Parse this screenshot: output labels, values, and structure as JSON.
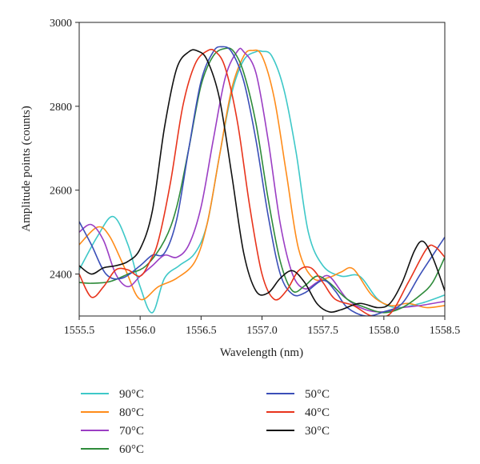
{
  "chart_data": {
    "type": "line",
    "xlabel": "Wavelength (nm)",
    "ylabel": "Amplitude points (counts)",
    "xlim": [
      1555.5,
      1558.5
    ],
    "ylim": [
      2300,
      3000
    ],
    "xticks": [
      1555.5,
      1556.0,
      1556.5,
      1557.0,
      1557.5,
      1558.0,
      1558.5
    ],
    "xtick_labels": [
      "1555.5",
      "1556.0",
      "1556.5",
      "1557.0",
      "1557.5",
      "1558.0",
      "1558.5"
    ],
    "yticks": [
      2400,
      2600,
      2800,
      3000
    ],
    "ytick_labels": [
      "2400",
      "2600",
      "2800",
      "3000"
    ],
    "grid": false,
    "legend_position": "bottom",
    "series": [
      {
        "name": "90°C",
        "color": "#3ec8c8",
        "x": [
          1555.5,
          1555.65,
          1555.78,
          1555.9,
          1556.0,
          1556.1,
          1556.2,
          1556.32,
          1556.45,
          1556.55,
          1556.65,
          1556.75,
          1556.85,
          1556.95,
          1557.0,
          1557.08,
          1557.18,
          1557.28,
          1557.38,
          1557.5,
          1557.65,
          1557.8,
          1557.95,
          1558.1,
          1558.3,
          1558.5
        ],
        "y": [
          2410,
          2490,
          2537,
          2470,
          2370,
          2308,
          2390,
          2420,
          2450,
          2520,
          2680,
          2830,
          2910,
          2930,
          2931,
          2920,
          2840,
          2690,
          2500,
          2420,
          2395,
          2395,
          2340,
          2320,
          2330,
          2350
        ]
      },
      {
        "name": "80°C",
        "color": "#ff8c1a",
        "x": [
          1555.5,
          1555.65,
          1555.75,
          1555.88,
          1556.0,
          1556.15,
          1556.3,
          1556.45,
          1556.55,
          1556.65,
          1556.75,
          1556.85,
          1556.92,
          1557.0,
          1557.1,
          1557.2,
          1557.3,
          1557.42,
          1557.55,
          1557.65,
          1557.75,
          1557.9,
          1558.05,
          1558.2,
          1558.35,
          1558.5
        ],
        "y": [
          2470,
          2512,
          2490,
          2410,
          2340,
          2370,
          2390,
          2430,
          2520,
          2680,
          2840,
          2920,
          2933,
          2920,
          2820,
          2640,
          2460,
          2390,
          2392,
          2405,
          2412,
          2350,
          2325,
          2330,
          2320,
          2325
        ]
      },
      {
        "name": "70°C",
        "color": "#9b3ec4",
        "x": [
          1555.5,
          1555.6,
          1555.7,
          1555.8,
          1555.9,
          1556.0,
          1556.1,
          1556.2,
          1556.3,
          1556.4,
          1556.5,
          1556.6,
          1556.7,
          1556.8,
          1556.85,
          1556.95,
          1557.05,
          1557.15,
          1557.25,
          1557.35,
          1557.45,
          1557.55,
          1557.7,
          1557.85,
          1558.0,
          1558.15,
          1558.3,
          1558.5
        ],
        "y": [
          2500,
          2518,
          2480,
          2400,
          2370,
          2395,
          2420,
          2445,
          2440,
          2470,
          2560,
          2720,
          2870,
          2932,
          2930,
          2880,
          2720,
          2520,
          2400,
          2365,
          2380,
          2395,
          2340,
          2315,
          2310,
          2320,
          2325,
          2335
        ]
      },
      {
        "name": "60°C",
        "color": "#2e8b3a",
        "x": [
          1555.5,
          1555.6,
          1555.75,
          1555.9,
          1556.05,
          1556.2,
          1556.3,
          1556.4,
          1556.5,
          1556.6,
          1556.7,
          1556.77,
          1556.85,
          1556.95,
          1557.05,
          1557.15,
          1557.25,
          1557.35,
          1557.45,
          1557.55,
          1557.7,
          1557.85,
          1558.0,
          1558.15,
          1558.3,
          1558.4,
          1558.5
        ],
        "y": [
          2380,
          2378,
          2382,
          2400,
          2420,
          2480,
          2560,
          2700,
          2850,
          2920,
          2938,
          2930,
          2880,
          2760,
          2580,
          2430,
          2360,
          2372,
          2395,
          2380,
          2340,
          2320,
          2308,
          2320,
          2350,
          2380,
          2440
        ]
      },
      {
        "name": "50°C",
        "color": "#3b4fb8",
        "x": [
          1555.5,
          1555.6,
          1555.72,
          1555.85,
          1556.0,
          1556.1,
          1556.2,
          1556.3,
          1556.4,
          1556.5,
          1556.6,
          1556.67,
          1556.75,
          1556.85,
          1556.95,
          1557.05,
          1557.15,
          1557.25,
          1557.35,
          1557.5,
          1557.6,
          1557.7,
          1557.85,
          1558.0,
          1558.15,
          1558.3,
          1558.5
        ],
        "y": [
          2525,
          2470,
          2400,
          2390,
          2420,
          2445,
          2450,
          2530,
          2700,
          2860,
          2930,
          2942,
          2930,
          2860,
          2720,
          2540,
          2400,
          2352,
          2355,
          2385,
          2360,
          2320,
          2300,
          2310,
          2330,
          2400,
          2488
        ]
      },
      {
        "name": "40°C",
        "color": "#e8341c",
        "x": [
          1555.5,
          1555.6,
          1555.7,
          1555.8,
          1555.9,
          1556.0,
          1556.08,
          1556.15,
          1556.25,
          1556.35,
          1556.45,
          1556.55,
          1556.62,
          1556.7,
          1556.8,
          1556.9,
          1557.0,
          1557.1,
          1557.2,
          1557.3,
          1557.4,
          1557.5,
          1557.6,
          1557.75,
          1557.9,
          1558.05,
          1558.2,
          1558.35,
          1558.42,
          1558.5
        ],
        "y": [
          2400,
          2345,
          2370,
          2410,
          2410,
          2395,
          2430,
          2480,
          2620,
          2800,
          2900,
          2932,
          2930,
          2890,
          2760,
          2560,
          2400,
          2340,
          2360,
          2408,
          2415,
          2380,
          2340,
          2325,
          2300,
          2305,
          2380,
          2460,
          2465,
          2440
        ]
      },
      {
        "name": "30°C",
        "color": "#111111",
        "x": [
          1555.5,
          1555.6,
          1555.7,
          1555.8,
          1555.9,
          1556.0,
          1556.1,
          1556.2,
          1556.3,
          1556.4,
          1556.47,
          1556.55,
          1556.65,
          1556.75,
          1556.85,
          1556.95,
          1557.05,
          1557.15,
          1557.25,
          1557.35,
          1557.45,
          1557.55,
          1557.65,
          1557.8,
          1557.95,
          1558.05,
          1558.15,
          1558.25,
          1558.32,
          1558.4,
          1558.5
        ],
        "y": [
          2420,
          2400,
          2415,
          2420,
          2430,
          2460,
          2550,
          2750,
          2890,
          2930,
          2932,
          2910,
          2820,
          2640,
          2450,
          2360,
          2355,
          2390,
          2408,
          2380,
          2330,
          2310,
          2315,
          2330,
          2320,
          2330,
          2380,
          2455,
          2478,
          2440,
          2360
        ]
      }
    ]
  }
}
